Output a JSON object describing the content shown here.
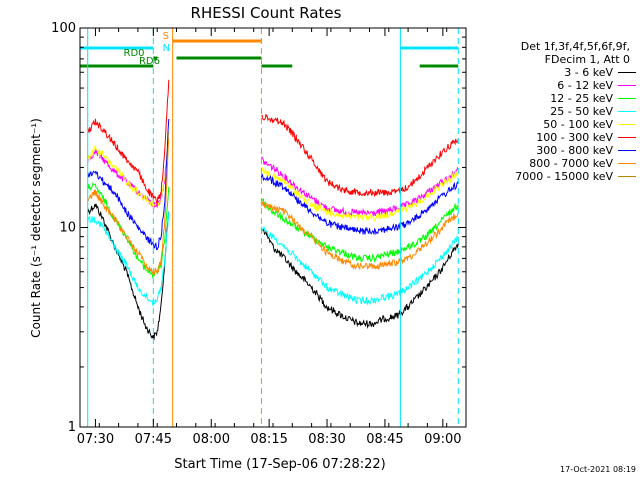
{
  "chart_data": {
    "type": "line",
    "title": "RHESSI Count Rates",
    "xlabel": "Start Time (17-Sep-06 07:28:22)",
    "ylabel": "Count Rate (s⁻¹ detector segment⁻¹)",
    "y_scale": "log",
    "ylim": [
      1,
      100
    ],
    "xlim": [
      "07:26",
      "09:06"
    ],
    "x_ticks": [
      "07:30",
      "07:45",
      "08:00",
      "08:15",
      "08:30",
      "08:45",
      "09:00"
    ],
    "y_ticks": [
      "1",
      "10",
      "100"
    ],
    "legend_position": "right",
    "legend_header": [
      "Det 1f,3f,4f,5f,6f,9f,",
      "FDecim 1, Att 0"
    ],
    "x": [
      "07:28",
      "07:30",
      "07:32",
      "07:35",
      "07:38",
      "07:41",
      "07:43",
      "07:45",
      "07:46",
      "07:47",
      "07:48",
      "07:49",
      "08:13",
      "08:14",
      "08:16",
      "08:19",
      "08:22",
      "08:26",
      "08:30",
      "08:34",
      "08:38",
      "08:42",
      "08:45",
      "08:48",
      "08:51",
      "08:54",
      "08:57",
      "09:00",
      "09:02",
      "09:04"
    ],
    "series": [
      {
        "name": "3 - 6 keV",
        "color": "#000000",
        "values": [
          12,
          13,
          11,
          8,
          6,
          4,
          3.2,
          2.8,
          3.0,
          4.0,
          7,
          12,
          10,
          9.5,
          8,
          7,
          6,
          5,
          4,
          3.6,
          3.3,
          3.3,
          3.5,
          3.6,
          4.0,
          4.6,
          5.3,
          6.3,
          7.3,
          8.3
        ]
      },
      {
        "name": "6 - 12 keV",
        "color": "#ff00ff",
        "values": [
          22,
          24,
          22,
          19,
          17,
          15,
          14,
          13,
          13,
          14,
          18,
          30,
          22,
          21,
          20,
          18,
          16,
          14,
          12.5,
          12,
          11.8,
          11.8,
          12,
          12.5,
          13,
          14,
          15.5,
          17,
          18,
          19.5
        ]
      },
      {
        "name": "12 - 25 keV",
        "color": "#00ff00",
        "values": [
          16,
          16,
          14,
          11,
          9,
          7,
          6.2,
          5.8,
          6.0,
          6.5,
          9,
          16,
          14,
          13,
          12,
          11,
          10,
          9,
          8,
          7.5,
          7,
          7,
          7.3,
          7.5,
          8,
          8.5,
          9.5,
          11,
          12,
          13
        ]
      },
      {
        "name": "25 - 50 keV",
        "color": "#00ffff",
        "values": [
          11,
          11,
          10,
          8,
          6.5,
          5,
          4.5,
          4.2,
          4.4,
          5.0,
          7,
          12,
          10,
          9.5,
          9,
          8,
          7,
          6,
          5,
          4.6,
          4.3,
          4.3,
          4.5,
          4.6,
          5,
          5.5,
          6.3,
          7.2,
          8,
          9
        ]
      },
      {
        "name": "50 - 100 keV",
        "color": "#ffff00",
        "values": [
          22,
          25,
          23,
          20,
          17,
          15,
          14,
          13,
          13,
          14,
          18,
          30,
          20,
          19,
          18,
          17,
          15,
          13,
          12,
          11.5,
          11.2,
          11.2,
          11.5,
          12,
          12.5,
          13.5,
          15,
          16.5,
          17.5,
          19
        ]
      },
      {
        "name": "100 - 300 keV",
        "color": "#ff0000",
        "values": [
          30,
          34,
          31,
          26,
          22,
          19,
          16,
          14,
          13.5,
          15,
          25,
          55,
          35,
          36,
          35,
          33,
          28,
          22,
          17,
          15.5,
          15,
          15,
          15,
          15,
          16,
          18,
          21,
          24,
          26,
          28
        ]
      },
      {
        "name": "300 - 800 keV",
        "color": "#0000ff",
        "values": [
          18,
          19,
          17,
          15,
          12,
          10,
          9,
          8.2,
          8.0,
          9,
          14,
          35,
          18,
          18,
          17,
          16,
          14,
          12,
          10.5,
          10,
          9.6,
          9.6,
          9.8,
          10,
          10.5,
          11.5,
          13,
          14.5,
          15.5,
          16.5
        ]
      },
      {
        "name": "800 - 7000 keV",
        "color": "#ff8800",
        "values": [
          14,
          15,
          13,
          11,
          9,
          7.5,
          6.5,
          6.0,
          6.0,
          6.8,
          11,
          28,
          13,
          13,
          12.5,
          12,
          10.5,
          9,
          7.5,
          6.8,
          6.4,
          6.4,
          6.5,
          6.7,
          7,
          7.8,
          8.8,
          10,
          11,
          11.8
        ]
      },
      {
        "name": "7000 - 15000 keV",
        "color": "#b8860b",
        "values": [
          null,
          null,
          null,
          null,
          null,
          null,
          null,
          null,
          null,
          null,
          null,
          null,
          null,
          null,
          null,
          null,
          null,
          null,
          null,
          null,
          null,
          null,
          null,
          null,
          null,
          null,
          null,
          null,
          null,
          null
        ]
      }
    ],
    "attenuator_bars": [
      {
        "label": "",
        "color": "#00e5ff",
        "level": 0,
        "spans": [
          [
            "07:26",
            "07:45"
          ],
          [
            "08:49",
            "09:04"
          ]
        ]
      },
      {
        "label": "S",
        "color": "#ff8800",
        "level": 1,
        "spans": [
          [
            "07:50",
            "08:13"
          ]
        ]
      },
      {
        "label": "RD0",
        "color": "#008800",
        "level": 2,
        "spans": [
          [
            "07:45",
            "07:46"
          ],
          [
            "07:51",
            "08:13"
          ]
        ]
      },
      {
        "label": "RD6",
        "color": "#008800",
        "level": 3,
        "spans": [
          [
            "07:26",
            "07:45"
          ],
          [
            "08:13",
            "08:21"
          ],
          [
            "08:54",
            "09:04"
          ]
        ]
      }
    ],
    "bar_glyph_labels": [
      {
        "text": "N",
        "color": "#00e5ff"
      }
    ],
    "vertical_markers": [
      {
        "time": "07:45",
        "color": "#00e5ff",
        "style": "dashed"
      },
      {
        "time": "08:13",
        "color": "#ff8800",
        "style": "dashed"
      },
      {
        "time": "09:04",
        "color": "#00e5ff",
        "style": "dashed"
      },
      {
        "time": "07:28",
        "color": "#00e5ff",
        "style": "solid"
      },
      {
        "time": "07:50",
        "color": "#ff8800",
        "style": "solid"
      },
      {
        "time": "08:49",
        "color": "#00e5ff",
        "style": "solid"
      }
    ]
  },
  "footer_stamp": "17-Oct-2021 08:19"
}
